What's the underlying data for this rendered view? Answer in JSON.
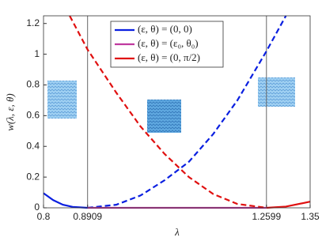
{
  "chart_data": {
    "type": "line",
    "xlabel": "λ",
    "ylabel": "w(λ, ε, θ)",
    "xlim": [
      0.8,
      1.35
    ],
    "ylim": [
      0,
      1.25
    ],
    "xticks": [
      0.8,
      0.8909,
      1.2599,
      1.35
    ],
    "yticks": [
      0,
      0.2,
      0.4,
      0.6,
      0.8,
      1,
      1.2
    ],
    "vlines": [
      0.8909,
      1.2599
    ],
    "legend": "top center",
    "series": [
      {
        "name": "(ε, θ) = (0, 0)",
        "color": "#0a1fe0",
        "pieces": [
          {
            "style": "solid",
            "x": [
              0.8,
              0.82,
              0.84,
              0.86,
              0.8909
            ],
            "values": [
              0.095,
              0.05,
              0.02,
              0.006,
              0
            ]
          },
          {
            "style": "dashed",
            "x": [
              0.8909,
              0.95,
              1.0,
              1.05,
              1.1,
              1.15,
              1.2,
              1.2599,
              1.3
            ],
            "values": [
              0,
              0.02,
              0.08,
              0.18,
              0.3,
              0.48,
              0.7,
              1.02,
              1.25
            ]
          }
        ]
      },
      {
        "name": "(ε, θ) = (ε₀, θ₀)",
        "color": "#c0399f",
        "pieces": [
          {
            "style": "solid",
            "x": [
              0.8909,
              1.2599
            ],
            "values": [
              0,
              0
            ]
          }
        ]
      },
      {
        "name": "(ε, θ) = (0, π/2)",
        "color": "#e01010",
        "pieces": [
          {
            "style": "dashed",
            "x": [
              0.854,
              0.8909,
              0.95,
              1.0,
              1.05,
              1.1,
              1.15,
              1.2,
              1.2599
            ],
            "values": [
              1.25,
              1.03,
              0.75,
              0.53,
              0.35,
              0.2,
              0.09,
              0.025,
              0
            ]
          },
          {
            "style": "solid",
            "x": [
              1.2599,
              1.3,
              1.35
            ],
            "values": [
              0,
              0.008,
              0.04
            ]
          }
        ]
      }
    ]
  }
}
